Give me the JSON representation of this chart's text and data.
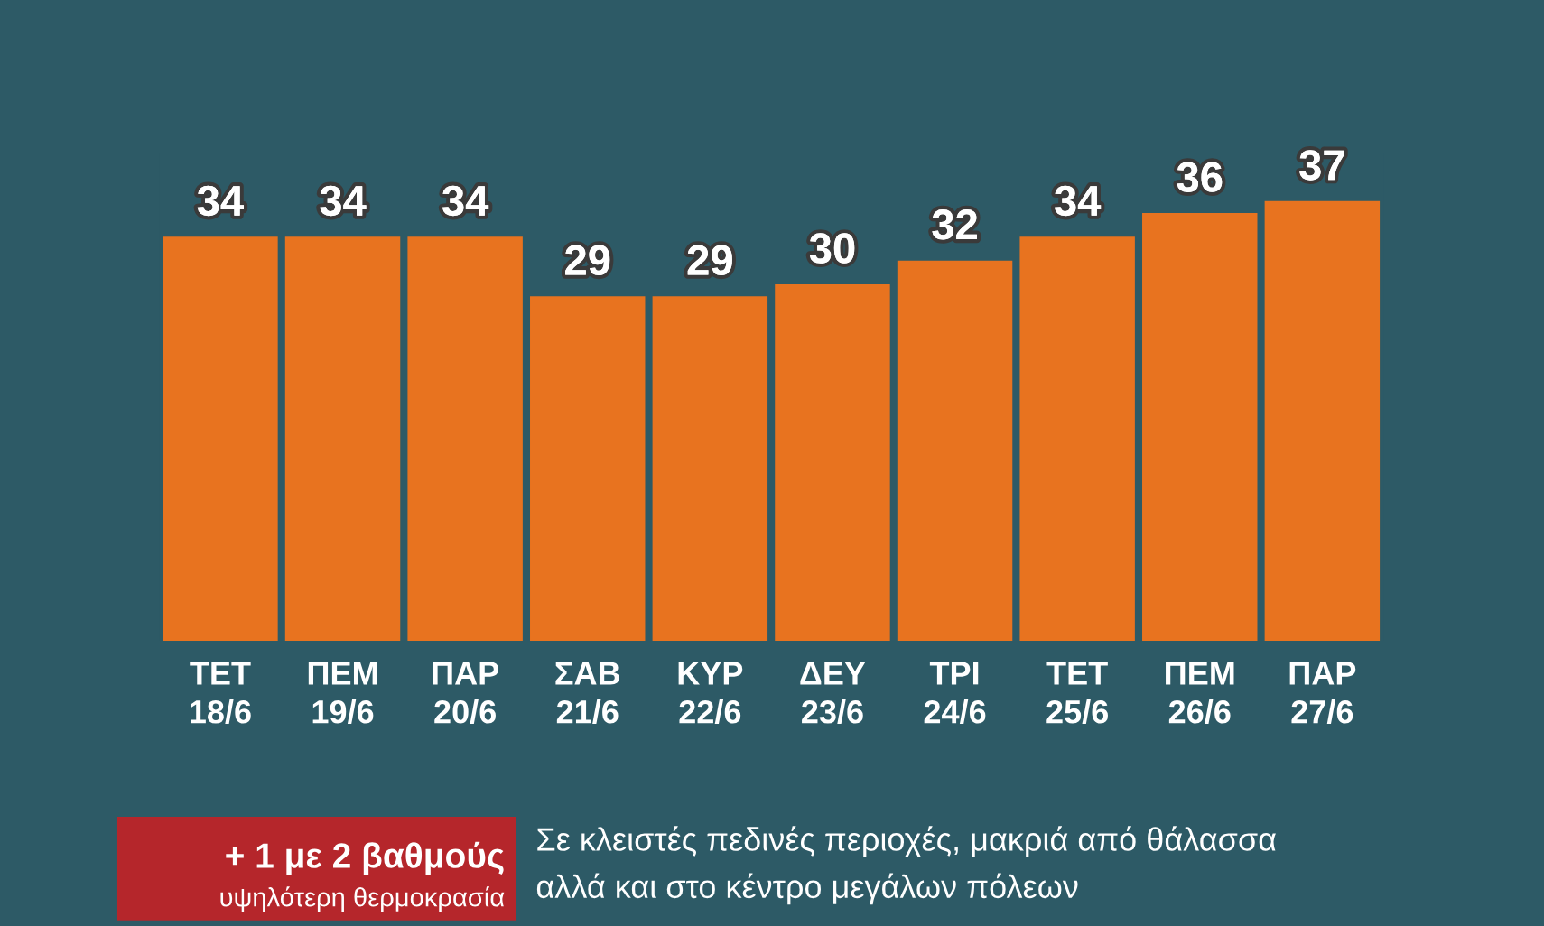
{
  "chart_data": {
    "type": "bar",
    "categories": [
      "ΤΕΤ\n18/6",
      "ΠΕΜ\n19/6",
      "ΠΑΡ\n20/6",
      "ΣΑΒ\n21/6",
      "ΚΥΡ\n22/6",
      "ΔΕΥ\n23/6",
      "ΤΡΙ\n24/6",
      "ΤΕΤ\n25/6",
      "ΠΕΜ\n26/6",
      "ΠΑΡ\n27/6"
    ],
    "values": [
      34,
      34,
      34,
      29,
      29,
      30,
      32,
      34,
      36,
      37
    ],
    "color": "#e8731f",
    "data_labels": true,
    "annotations": [
      "+ 1 με 2 βαθμούς",
      "υψηλότερη θερμοκρασία",
      "Σε κλειστές πεδινές περιοχές, μακριά από θάλασσα",
      "αλλά και στο κέντρο μεγάλων πόλεων"
    ]
  }
}
